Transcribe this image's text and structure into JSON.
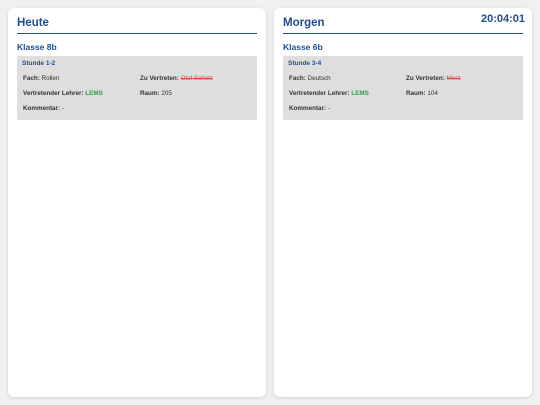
{
  "clock": "20:04:01",
  "panels": [
    {
      "title": "Heute",
      "class": "Klasse 8b",
      "entry": {
        "period": "Stunde 1-2",
        "subject_label": "Fach:",
        "subject": "Rollen",
        "replaced_label": "Zu Vertreten:",
        "replaced": "Olaf Scholz",
        "teacher_label": "Vertretender Lehrer:",
        "teacher": "LEMS",
        "room_label": "Raum:",
        "room": "205",
        "comment_label": "Kommentar:",
        "comment": "-"
      }
    },
    {
      "title": "Morgen",
      "class": "Klasse 6b",
      "entry": {
        "period": "Stunde 3-4",
        "subject_label": "Fach:",
        "subject": "Deutsch",
        "replaced_label": "Zu Vertreten:",
        "replaced": "Merz",
        "teacher_label": "Vertretender Lehrer:",
        "teacher": "LEMS",
        "room_label": "Raum:",
        "room": "104",
        "comment_label": "Kommentar:",
        "comment": "-"
      }
    }
  ],
  "colors": {
    "accent": "#1f4e8c",
    "teacher": "#2e9e3e",
    "replaced": "#e0494a",
    "entry_bg": "#dedede"
  }
}
